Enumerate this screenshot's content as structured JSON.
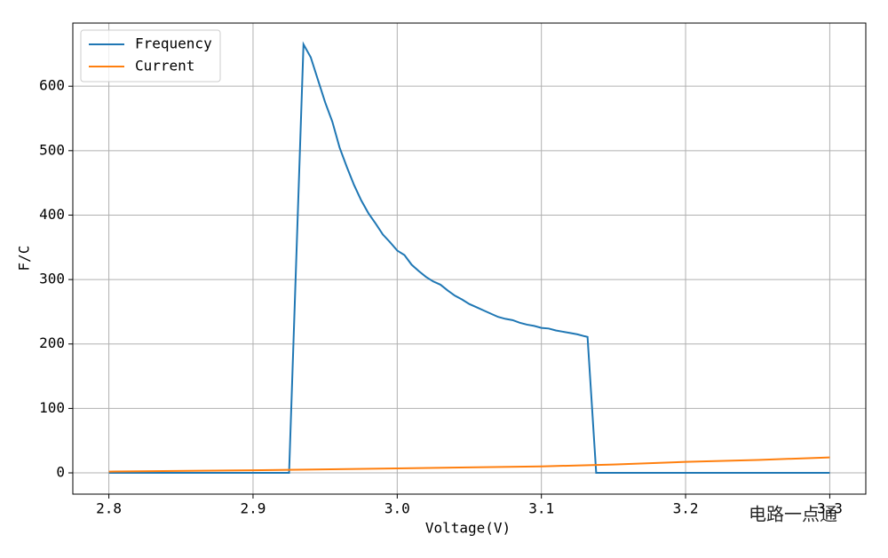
{
  "chart_data": {
    "type": "line",
    "xlabel": "Voltage(V)",
    "ylabel": "F/C",
    "xlim": [
      2.775,
      3.325
    ],
    "ylim": [
      -33,
      698
    ],
    "xticks": [
      2.8,
      2.9,
      {
        "value": 3.0,
        "label": "3.0"
      },
      3.1,
      3.2,
      3.3
    ],
    "yticks": [
      0,
      100,
      200,
      300,
      400,
      500,
      600
    ],
    "grid": true,
    "legend": "upper left",
    "watermark": "电路一点通",
    "series": [
      {
        "name": "Frequency",
        "color": "#1f77b4",
        "x": [
          2.8,
          2.925,
          2.935,
          2.94,
          2.945,
          2.95,
          2.955,
          2.96,
          2.965,
          2.97,
          2.975,
          2.98,
          2.985,
          2.99,
          2.995,
          3.0,
          3.005,
          3.01,
          3.015,
          3.02,
          3.025,
          3.03,
          3.035,
          3.04,
          3.045,
          3.05,
          3.055,
          3.06,
          3.065,
          3.07,
          3.075,
          3.08,
          3.085,
          3.09,
          3.095,
          3.1,
          3.105,
          3.11,
          3.115,
          3.12,
          3.125,
          3.13,
          3.132,
          3.138,
          3.3
        ],
        "values": [
          0,
          0,
          665,
          645,
          610,
          575,
          545,
          505,
          475,
          447,
          423,
          403,
          387,
          370,
          358,
          345,
          338,
          323,
          313,
          304,
          297,
          292,
          283,
          275,
          269,
          262,
          257,
          252,
          247,
          242,
          239,
          237,
          233,
          230,
          228,
          225,
          224,
          221,
          219,
          217,
          215,
          212,
          211,
          0,
          0
        ]
      },
      {
        "name": "Current",
        "color": "#ff7f0e",
        "x": [
          2.8,
          2.9,
          3.0,
          3.1,
          3.15,
          3.2,
          3.25,
          3.3
        ],
        "values": [
          2,
          4,
          7,
          10,
          13,
          17,
          20,
          24
        ]
      }
    ]
  }
}
